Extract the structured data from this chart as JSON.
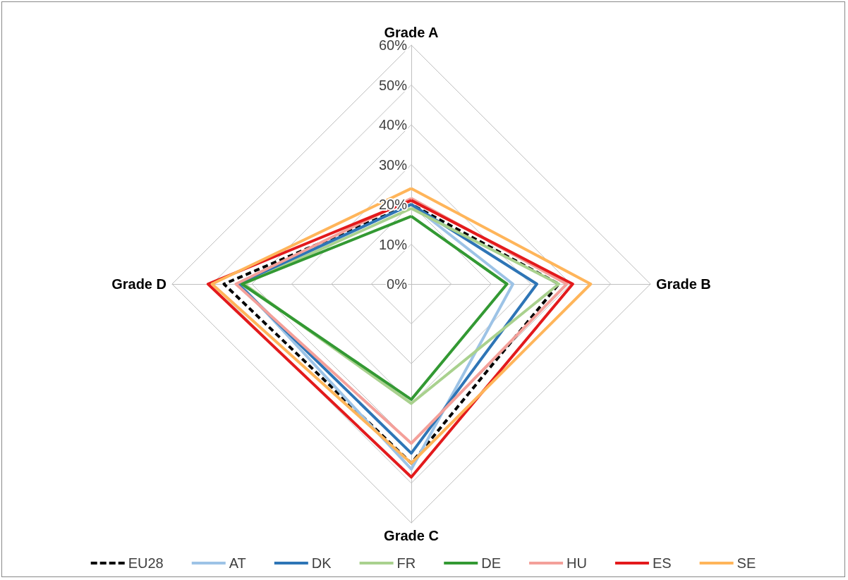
{
  "chart_data": {
    "type": "radar",
    "categories": [
      "Grade A",
      "Grade B",
      "Grade C",
      "Grade D"
    ],
    "ylim": [
      0,
      60
    ],
    "yticks": [
      {
        "value": 0,
        "label": "0%"
      },
      {
        "value": 10,
        "label": "10%"
      },
      {
        "value": 20,
        "label": "20%"
      },
      {
        "value": 30,
        "label": "30%"
      },
      {
        "value": 40,
        "label": "40%"
      },
      {
        "value": 50,
        "label": "50%"
      },
      {
        "value": 60,
        "label": "60%"
      }
    ],
    "grid": true,
    "legend": "bottom",
    "marker": "none",
    "series": [
      {
        "name": "EU28",
        "color": "#000000",
        "line_style": "dashed",
        "values": [
          20,
          37,
          45,
          47
        ]
      },
      {
        "name": "AT",
        "color": "#9dc3e6",
        "values": [
          20,
          25.5,
          46.5,
          43
        ]
      },
      {
        "name": "DK",
        "color": "#2e75b6",
        "values": [
          20,
          31.5,
          42.5,
          43.5
        ]
      },
      {
        "name": "FR",
        "color": "#a9d18e",
        "values": [
          19,
          37,
          30,
          42
        ]
      },
      {
        "name": "DE",
        "color": "#339933",
        "values": [
          17,
          24,
          29,
          42.5
        ]
      },
      {
        "name": "HU",
        "color": "#f4a09a",
        "values": [
          21.5,
          39,
          40,
          44
        ]
      },
      {
        "name": "ES",
        "color": "#e31a1c",
        "values": [
          21,
          40.5,
          48.5,
          51
        ]
      },
      {
        "name": "SE",
        "color": "#ffb55a",
        "values": [
          24,
          45,
          45,
          50
        ]
      }
    ]
  }
}
